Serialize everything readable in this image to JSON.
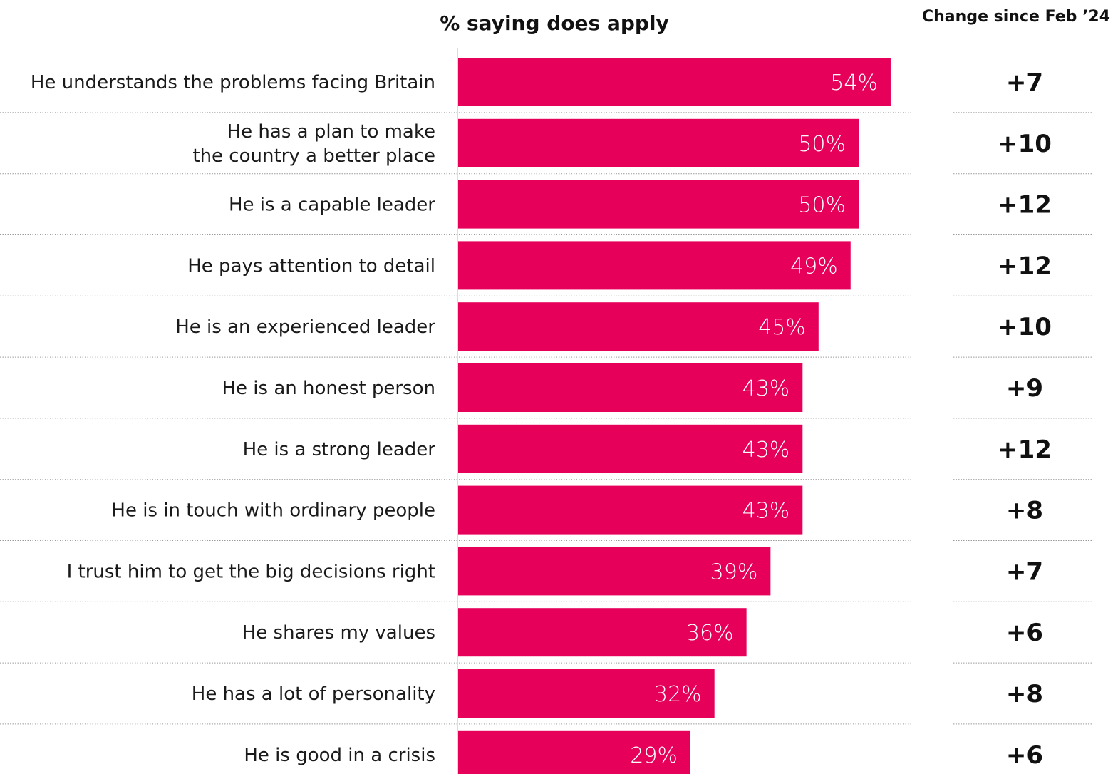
{
  "chart_data": {
    "type": "bar",
    "orientation": "horizontal",
    "value_header": "% saying does apply",
    "change_header": "Change since Feb ’24",
    "categories": [
      [
        "He understands the problems facing Britain"
      ],
      [
        "He has a plan to make",
        "the country a better place"
      ],
      [
        "He is a capable leader"
      ],
      [
        "He pays attention to detail"
      ],
      [
        "He is an experienced leader"
      ],
      [
        "He is an honest person"
      ],
      [
        "He is a strong leader"
      ],
      [
        "He is in touch with ordinary people"
      ],
      [
        "I trust him to get the big decisions right"
      ],
      [
        "He shares my values"
      ],
      [
        "He has a lot of personality"
      ],
      [
        "He is good in a crisis"
      ]
    ],
    "values": [
      54,
      50,
      50,
      49,
      45,
      43,
      43,
      43,
      39,
      36,
      32,
      29
    ],
    "value_labels": [
      "54%",
      "50%",
      "50%",
      "49%",
      "45%",
      "43%",
      "43%",
      "43%",
      "39%",
      "36%",
      "32%",
      "29%"
    ],
    "changes": [
      "+7",
      "+10",
      "+12",
      "+12",
      "+10",
      "+9",
      "+12",
      "+8",
      "+7",
      "+6",
      "+8",
      "+6"
    ],
    "bar_color": "#e6005a",
    "grid": false
  }
}
